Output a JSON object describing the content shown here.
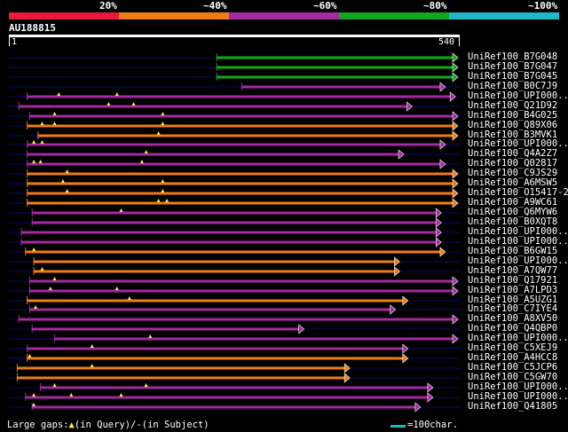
{
  "legend": [
    {
      "label": "20%",
      "color": "#e8193c"
    },
    {
      "label": "~40%",
      "color": "#f07c14"
    },
    {
      "label": "~60%",
      "color": "#a52aa0"
    },
    {
      "label": "~80%",
      "color": "#12a81e"
    },
    {
      "label": "~100%",
      "color": "#1fb8c4"
    }
  ],
  "accession": "AU188815",
  "query": {
    "start_label": "1",
    "end_label": "540",
    "length": 540
  },
  "colors": {
    "orange": "#f07c14",
    "purple": "#a52aa0",
    "green": "#12a81e",
    "bg_line": "#0a0a6a"
  },
  "hits": [
    {
      "name": "UniRef100_B7G048",
      "start": 250,
      "end": 540,
      "color": "green",
      "arrow": "right",
      "marks": []
    },
    {
      "name": "UniRef100_B7G047",
      "start": 250,
      "end": 540,
      "color": "green",
      "arrow": "right",
      "marks": []
    },
    {
      "name": "UniRef100_B7G045",
      "start": 250,
      "end": 540,
      "color": "green",
      "arrow": "right",
      "marks": []
    },
    {
      "name": "UniRef100_B0C7J9",
      "start": 280,
      "end": 525,
      "color": "purple",
      "arrow": "right",
      "marks": []
    },
    {
      "name": "UniRef100_UPI000...",
      "start": 22,
      "end": 537,
      "color": "purple",
      "arrow": "right",
      "marks": [
        60,
        130
      ]
    },
    {
      "name": "UniRef100_Q21D92",
      "start": 12,
      "end": 485,
      "color": "purple",
      "arrow": "right",
      "marks": [
        120,
        150
      ]
    },
    {
      "name": "UniRef100_B4G025",
      "start": 25,
      "end": 540,
      "color": "purple",
      "arrow": "right",
      "marks": [
        55,
        185
      ]
    },
    {
      "name": "UniRef100_Q89X06",
      "start": 22,
      "end": 540,
      "color": "orange",
      "arrow": "right",
      "marks": [
        40,
        55,
        185
      ]
    },
    {
      "name": "UniRef100_B3MVK1",
      "start": 35,
      "end": 540,
      "color": "orange",
      "arrow": "right",
      "marks": [
        180
      ]
    },
    {
      "name": "UniRef100_UPI000...",
      "start": 22,
      "end": 525,
      "color": "purple",
      "arrow": "right",
      "marks": [
        30,
        40
      ]
    },
    {
      "name": "UniRef100_Q4A2Z7",
      "start": 22,
      "end": 475,
      "color": "purple",
      "arrow": "right",
      "marks": [
        165
      ]
    },
    {
      "name": "UniRef100_Q02817",
      "start": 22,
      "end": 525,
      "color": "purple",
      "arrow": "right",
      "marks": [
        30,
        38,
        160
      ]
    },
    {
      "name": "UniRef100_C9JS29",
      "start": 22,
      "end": 540,
      "color": "orange",
      "arrow": "right",
      "marks": [
        70
      ]
    },
    {
      "name": "UniRef100_A6MSW5",
      "start": 22,
      "end": 540,
      "color": "orange",
      "arrow": "right",
      "marks": [
        65,
        185
      ]
    },
    {
      "name": "UniRef100_O15417-2",
      "start": 22,
      "end": 540,
      "color": "orange",
      "arrow": "right",
      "marks": [
        70,
        185
      ]
    },
    {
      "name": "UniRef100_A9WC61",
      "start": 22,
      "end": 540,
      "color": "orange",
      "arrow": "right",
      "marks": [
        180,
        190
      ]
    },
    {
      "name": "UniRef100_Q6MYW6",
      "start": 28,
      "end": 520,
      "color": "purple",
      "arrow": "right",
      "marks": [
        135
      ]
    },
    {
      "name": "UniRef100_B0XQT8",
      "start": 28,
      "end": 520,
      "color": "purple",
      "arrow": "right",
      "marks": []
    },
    {
      "name": "UniRef100_UPI000...",
      "start": 15,
      "end": 520,
      "color": "purple",
      "arrow": "right",
      "marks": []
    },
    {
      "name": "UniRef100_UPI000...",
      "start": 15,
      "end": 520,
      "color": "purple",
      "arrow": "right",
      "marks": []
    },
    {
      "name": "UniRef100_B6GW15",
      "start": 20,
      "end": 525,
      "color": "orange",
      "arrow": "right",
      "marks": [
        30
      ]
    },
    {
      "name": "UniRef100_UPI000...",
      "start": 30,
      "end": 470,
      "color": "orange",
      "arrow": "right",
      "marks": []
    },
    {
      "name": "UniRef100_A7QW77",
      "start": 30,
      "end": 470,
      "color": "orange",
      "arrow": "right",
      "marks": [
        40
      ]
    },
    {
      "name": "UniRef100_Q17921",
      "start": 25,
      "end": 540,
      "color": "purple",
      "arrow": "right",
      "marks": [
        55
      ]
    },
    {
      "name": "UniRef100_A7LPD3",
      "start": 25,
      "end": 540,
      "color": "purple",
      "arrow": "right",
      "marks": [
        50,
        130
      ]
    },
    {
      "name": "UniRef100_A5UZG1",
      "start": 22,
      "end": 480,
      "color": "orange",
      "arrow": "right",
      "marks": [
        145
      ]
    },
    {
      "name": "UniRef100_C7IYE4",
      "start": 25,
      "end": 465,
      "color": "purple",
      "arrow": "right",
      "marks": [
        32
      ]
    },
    {
      "name": "UniRef100_A8XV50",
      "start": 12,
      "end": 540,
      "color": "purple",
      "arrow": "right",
      "marks": []
    },
    {
      "name": "UniRef100_Q4QBP0",
      "start": 28,
      "end": 355,
      "color": "purple",
      "arrow": "right",
      "marks": []
    },
    {
      "name": "UniRef100_UPI000...",
      "start": 55,
      "end": 540,
      "color": "purple",
      "arrow": "right",
      "marks": [
        170
      ]
    },
    {
      "name": "UniRef100_C5XEJ9",
      "start": 22,
      "end": 480,
      "color": "purple",
      "arrow": "right",
      "marks": [
        100
      ]
    },
    {
      "name": "UniRef100_A4HCC8",
      "start": 22,
      "end": 480,
      "color": "orange",
      "arrow": "right",
      "marks": [
        25
      ]
    },
    {
      "name": "UniRef100_C5JCP6",
      "start": 10,
      "end": 410,
      "color": "orange",
      "arrow": "right",
      "marks": [
        100
      ]
    },
    {
      "name": "UniRef100_C5GW70",
      "start": 10,
      "end": 410,
      "color": "orange",
      "arrow": "right",
      "marks": []
    },
    {
      "name": "UniRef100_UPI000...",
      "start": 38,
      "end": 510,
      "color": "purple",
      "arrow": "right",
      "marks": [
        55,
        165
      ]
    },
    {
      "name": "UniRef100_UPI000...",
      "start": 20,
      "end": 510,
      "color": "purple",
      "arrow": "right",
      "marks": [
        30,
        75,
        135
      ]
    },
    {
      "name": "UniRef100_Q41805",
      "start": 28,
      "end": 495,
      "color": "purple",
      "arrow": "right",
      "marks": [
        30
      ]
    }
  ],
  "footer": {
    "gaps_label": "Large gaps:",
    "gaps_query": "(in Query)/",
    "gaps_subject": "(in Subject)",
    "scale_label": "=100char."
  }
}
